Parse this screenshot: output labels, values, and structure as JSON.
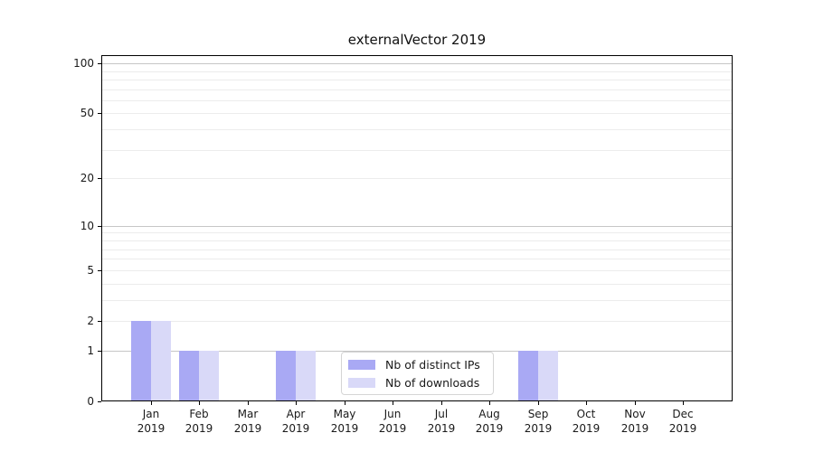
{
  "chart_data": {
    "type": "bar",
    "title": "externalVector 2019",
    "categories": [
      "Jan 2019",
      "Feb 2019",
      "Mar 2019",
      "Apr 2019",
      "May 2019",
      "Jun 2019",
      "Jul 2019",
      "Aug 2019",
      "Sep 2019",
      "Oct 2019",
      "Nov 2019",
      "Dec 2019"
    ],
    "series": [
      {
        "name": "Nb of distinct IPs",
        "color": "#a9a9f4",
        "values": [
          2,
          1,
          0,
          1,
          0,
          0,
          0,
          0,
          1,
          0,
          0,
          0
        ]
      },
      {
        "name": "Nb of downloads",
        "color": "#d9d9f8",
        "values": [
          2,
          1,
          0,
          1,
          0,
          0,
          0,
          0,
          1,
          0,
          0,
          0
        ]
      }
    ],
    "yticks": [
      0,
      1,
      2,
      5,
      10,
      20,
      50,
      100
    ],
    "y_scale": "log10(1+v)",
    "ylim": [
      0,
      112
    ],
    "xlabel": "",
    "ylabel": "",
    "grid": true,
    "legend_position": "lower-center-inside"
  },
  "colors": {
    "axis": "#000000",
    "grid_minor": "#ececec",
    "grid_major": "#c6c6c6",
    "text": "#1a1a1a",
    "background": "#ffffff"
  }
}
